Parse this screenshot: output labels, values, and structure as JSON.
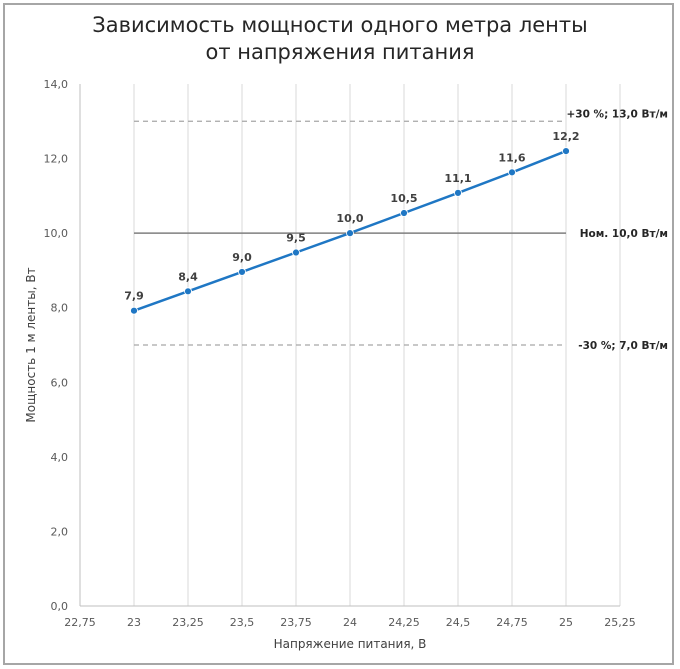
{
  "chart_data": {
    "type": "line",
    "title_lines": [
      "Зависимость мощности одного метра ленты",
      "от напряжения питания"
    ],
    "xlabel": "Напряжение питания, В",
    "ylabel": "Мощность 1 м ленты, Вт",
    "xlim": [
      22.75,
      25.25
    ],
    "ylim": [
      0,
      14
    ],
    "x_ticks": [
      22.75,
      23,
      23.25,
      23.5,
      23.75,
      24,
      24.25,
      24.5,
      24.75,
      25,
      25.25
    ],
    "x_tick_labels": [
      "22,75",
      "23",
      "23,25",
      "23,5",
      "23,75",
      "24",
      "24,25",
      "24,5",
      "24,75",
      "25",
      "25,25"
    ],
    "y_ticks": [
      0,
      2,
      4,
      6,
      8,
      10,
      12,
      14
    ],
    "y_tick_labels": [
      "0,0",
      "2,0",
      "4,0",
      "6,0",
      "8,0",
      "10,0",
      "12,0",
      "14,0"
    ],
    "grid": "vertical",
    "series": [
      {
        "color": "#1f77c4",
        "x": [
          23,
          23.25,
          23.5,
          23.75,
          24,
          24.25,
          24.5,
          24.75,
          25
        ],
        "y": [
          7.92,
          8.44,
          8.96,
          9.48,
          10.0,
          10.54,
          11.08,
          11.63,
          12.2
        ],
        "labels": [
          "7,9",
          "8,4",
          "9,0",
          "9,5",
          "10,0",
          "10,5",
          "11,1",
          "11,6",
          "12,2"
        ]
      }
    ],
    "reference_lines": [
      {
        "y": 13.0,
        "style": "dashed",
        "color": "#a6a6a6",
        "label": "+30 %; 13,0 Вт/м"
      },
      {
        "y": 10.0,
        "style": "solid",
        "color": "#7f7f7f",
        "label": "Ном. 10,0 Вт/м"
      },
      {
        "y": 7.0,
        "style": "dashed",
        "color": "#a6a6a6",
        "label": "-30 %; 7,0 Вт/м"
      }
    ]
  }
}
